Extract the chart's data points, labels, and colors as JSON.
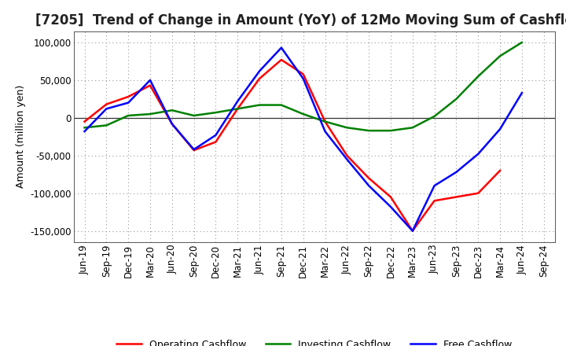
{
  "title": "[7205]  Trend of Change in Amount (YoY) of 12Mo Moving Sum of Cashflows",
  "ylabel": "Amount (million yen)",
  "x_labels": [
    "Jun-19",
    "Sep-19",
    "Dec-19",
    "Mar-20",
    "Jun-20",
    "Sep-20",
    "Dec-20",
    "Mar-21",
    "Jun-21",
    "Sep-21",
    "Dec-21",
    "Mar-22",
    "Jun-22",
    "Sep-22",
    "Dec-22",
    "Mar-23",
    "Jun-23",
    "Sep-23",
    "Dec-23",
    "Mar-24",
    "Jun-24",
    "Sep-24"
  ],
  "operating": [
    -5000,
    18000,
    28000,
    43000,
    -8000,
    -43000,
    -32000,
    12000,
    52000,
    77000,
    58000,
    -5000,
    -50000,
    -80000,
    -105000,
    -150000,
    -110000,
    -105000,
    -100000,
    -70000,
    null,
    null
  ],
  "investing": [
    -13000,
    -10000,
    3000,
    5000,
    10000,
    3000,
    7000,
    12000,
    17000,
    17000,
    5000,
    -5000,
    -13000,
    -17000,
    -17000,
    -13000,
    2000,
    25000,
    55000,
    82000,
    100000,
    null
  ],
  "free": [
    -18000,
    12000,
    20000,
    50000,
    -8000,
    -42000,
    -23000,
    22000,
    62000,
    93000,
    52000,
    -18000,
    -55000,
    -90000,
    -118000,
    -150000,
    -90000,
    -72000,
    -48000,
    -15000,
    33000,
    null
  ],
  "ylim": [
    -165000,
    115000
  ],
  "yticks": [
    -150000,
    -100000,
    -50000,
    0,
    50000,
    100000
  ],
  "colors": {
    "operating": "#FF0000",
    "investing": "#008000",
    "free": "#0000FF"
  },
  "line_width": 1.8,
  "background_color": "#FFFFFF",
  "plot_bg_color": "#FFFFFF",
  "grid_color": "#999999",
  "title_fontsize": 12,
  "label_fontsize": 9,
  "tick_fontsize": 8.5
}
